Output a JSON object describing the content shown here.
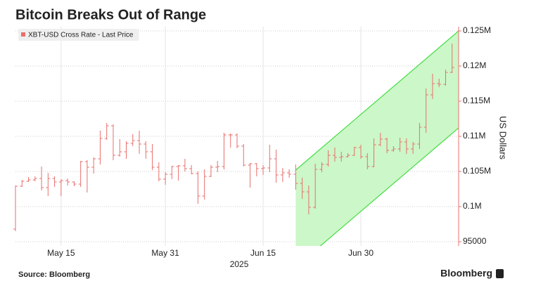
{
  "chart_data": {
    "type": "ohlc",
    "title": "Bitcoin Breaks Out of Range",
    "ylabel": "US Dollars",
    "xlabel": "2025",
    "source": "Source: Bloomberg",
    "brand": "Bloomberg",
    "legend": "upper left",
    "grid": true,
    "xlim": [
      "2025-05-08",
      "2025-07-15"
    ],
    "xticks": [
      {
        "value": "2025-05-15",
        "label": "May 15"
      },
      {
        "value": "2025-05-31",
        "label": "May 31"
      },
      {
        "value": "2025-06-15",
        "label": "Jun 15"
      },
      {
        "value": "2025-06-30",
        "label": "Jun 30"
      }
    ],
    "ylim": [
      94400,
      125600
    ],
    "yticks": [
      95000,
      {
        "value": 100000,
        "label": "0.1M"
      },
      {
        "value": 105000,
        "label": "0.105M"
      },
      {
        "value": 110000,
        "label": "0.11M"
      },
      {
        "value": 115000,
        "label": "0.115M"
      },
      {
        "value": 120000,
        "label": "0.12M"
      },
      {
        "value": 125000,
        "label": "0.125M"
      }
    ],
    "channel": {
      "x": [
        "2025-06-20",
        "2025-07-15"
      ],
      "upper": [
        105200,
        125000
      ],
      "lower": [
        91400,
        111200
      ],
      "color": "#44dd44",
      "fill": "#ccf7c8"
    },
    "x": [
      "2025-05-08",
      "2025-05-09",
      "2025-05-10",
      "2025-05-11",
      "2025-05-12",
      "2025-05-13",
      "2025-05-14",
      "2025-05-15",
      "2025-05-16",
      "2025-05-17",
      "2025-05-18",
      "2025-05-19",
      "2025-05-20",
      "2025-05-21",
      "2025-05-22",
      "2025-05-23",
      "2025-05-24",
      "2025-05-25",
      "2025-05-26",
      "2025-05-27",
      "2025-05-28",
      "2025-05-29",
      "2025-05-30",
      "2025-05-31",
      "2025-06-01",
      "2025-06-02",
      "2025-06-03",
      "2025-06-04",
      "2025-06-05",
      "2025-06-06",
      "2025-06-07",
      "2025-06-08",
      "2025-06-09",
      "2025-06-10",
      "2025-06-11",
      "2025-06-12",
      "2025-06-13",
      "2025-06-14",
      "2025-06-15",
      "2025-06-16",
      "2025-06-17",
      "2025-06-18",
      "2025-06-19",
      "2025-06-20",
      "2025-06-21",
      "2025-06-22",
      "2025-06-23",
      "2025-06-24",
      "2025-06-25",
      "2025-06-26",
      "2025-06-27",
      "2025-06-28",
      "2025-06-29",
      "2025-06-30",
      "2025-07-01",
      "2025-07-02",
      "2025-07-03",
      "2025-07-04",
      "2025-07-05",
      "2025-07-06",
      "2025-07-07",
      "2025-07-08",
      "2025-07-09",
      "2025-07-10",
      "2025-07-11",
      "2025-07-12",
      "2025-07-13",
      "2025-07-14"
    ],
    "series": [
      {
        "name": "XBT-USD Cross Rate - Last Price",
        "color": "#e86f6c",
        "open": [
          96800,
          102900,
          103600,
          103800,
          104000,
          102700,
          104000,
          103500,
          103700,
          103500,
          103200,
          106400,
          105600,
          106800,
          109700,
          111500,
          107300,
          107800,
          109000,
          109400,
          108900,
          107800,
          105600,
          103900,
          104600,
          105700,
          105800,
          105400,
          104700,
          101500,
          104300,
          105600,
          105700,
          110200,
          110200,
          108600,
          105900,
          106100,
          105400,
          105500,
          106800,
          104500,
          104800,
          104600,
          103300,
          102100,
          99900,
          105300,
          106000,
          107300,
          107000,
          107100,
          107300,
          108400,
          107100,
          105700,
          108800,
          109600,
          108000,
          108200,
          109200,
          108200,
          108900,
          111300,
          115900,
          117500,
          117400,
          119100
        ],
        "high": [
          103000,
          103800,
          104200,
          104300,
          105700,
          104800,
          104300,
          103900,
          104000,
          103600,
          106500,
          106600,
          107000,
          110800,
          111900,
          111700,
          109600,
          109300,
          110300,
          110800,
          109300,
          108900,
          106300,
          104900,
          105800,
          105900,
          106800,
          105900,
          105000,
          105300,
          105900,
          106500,
          110500,
          110400,
          110400,
          108900,
          106200,
          106200,
          105900,
          108800,
          108100,
          105500,
          105300,
          106000,
          104100,
          103000,
          106100,
          106300,
          108000,
          108400,
          107800,
          107600,
          108500,
          108800,
          107600,
          109700,
          110500,
          109800,
          108600,
          109800,
          109700,
          109200,
          111900,
          116800,
          118900,
          118200,
          119500,
          123200
        ],
        "low": [
          96500,
          102800,
          103500,
          103600,
          102300,
          101500,
          102800,
          101500,
          103000,
          102900,
          102800,
          102000,
          104700,
          106000,
          109500,
          106600,
          107100,
          106800,
          108600,
          107500,
          106800,
          105200,
          103600,
          103100,
          103900,
          103700,
          105000,
          104600,
          100400,
          101000,
          104200,
          104900,
          105300,
          108400,
          108300,
          105700,
          102700,
          104300,
          104500,
          104900,
          103400,
          103500,
          104100,
          102400,
          101100,
          98900,
          99700,
          104900,
          105700,
          106400,
          106400,
          107000,
          107200,
          106800,
          105300,
          105600,
          108600,
          107600,
          107800,
          107800,
          107500,
          107500,
          108200,
          110500,
          115300,
          117000,
          117200,
          119000
        ],
        "close": [
          102900,
          103600,
          103800,
          104000,
          102700,
          104000,
          103500,
          103700,
          103500,
          103200,
          106400,
          105600,
          106800,
          109700,
          111500,
          107300,
          107800,
          109000,
          109400,
          108900,
          107800,
          105600,
          103900,
          104600,
          105700,
          105800,
          105400,
          104700,
          101500,
          104300,
          105600,
          105700,
          110200,
          110200,
          108600,
          105900,
          106100,
          105400,
          105500,
          106800,
          104500,
          104800,
          104600,
          103300,
          102100,
          99900,
          105300,
          106000,
          107300,
          107000,
          107100,
          107300,
          108400,
          107100,
          105700,
          108800,
          109600,
          108000,
          108200,
          109200,
          108200,
          108900,
          111300,
          115900,
          117500,
          117400,
          119100,
          119800
        ]
      }
    ]
  }
}
